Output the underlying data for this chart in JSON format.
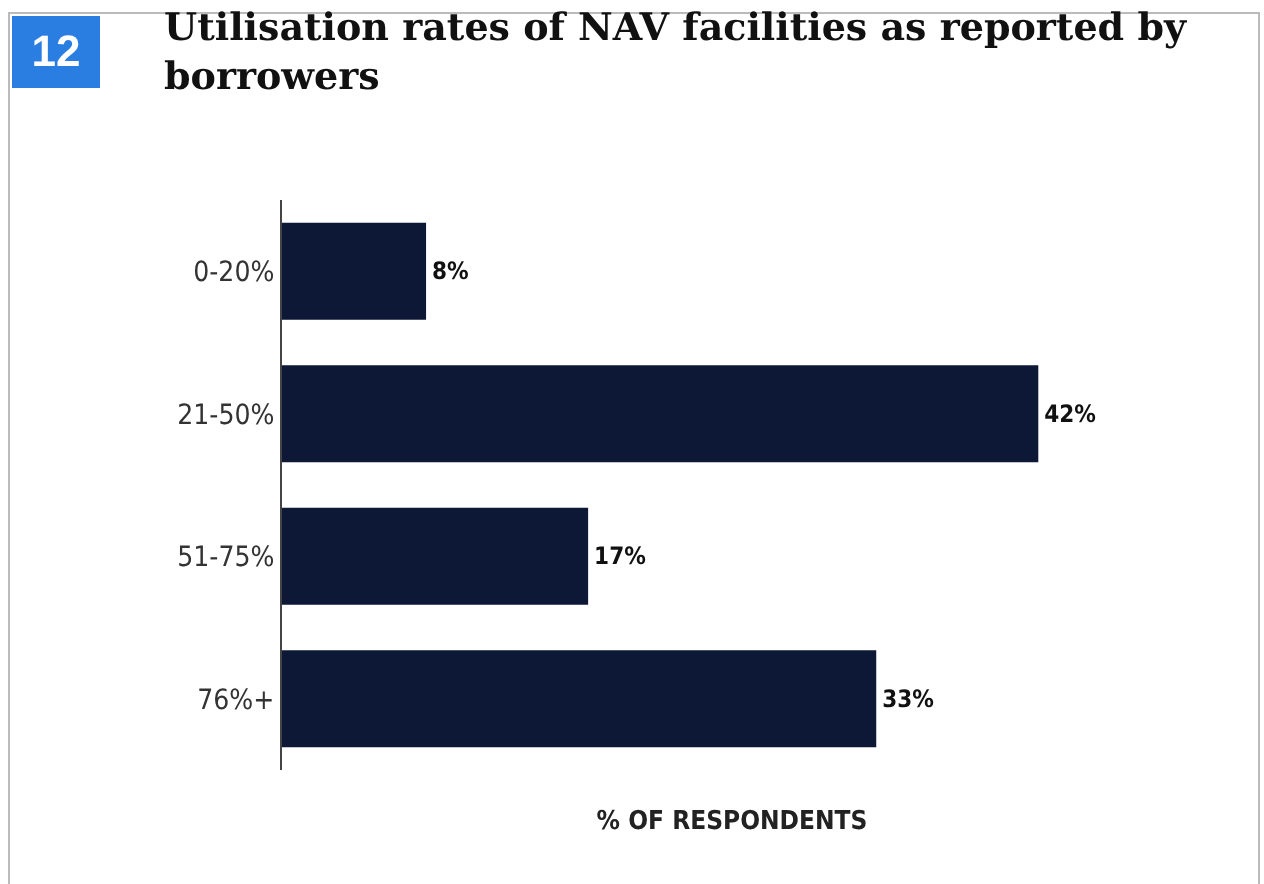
{
  "chart_data": {
    "type": "bar",
    "orientation": "horizontal",
    "title": "Utilisation rates of NAV facilities as reported by borrowers",
    "annotations": [
      "12"
    ],
    "xlabel": "% OF RESPONDENTS",
    "categories": [
      "0-20%",
      "21-50%",
      "51-75%",
      "76%+"
    ],
    "values": [
      8,
      42,
      17,
      33
    ],
    "value_labels": [
      "8%",
      "42%",
      "17%",
      "33%"
    ],
    "color": "#0c1836",
    "tick_labels": "y"
  }
}
